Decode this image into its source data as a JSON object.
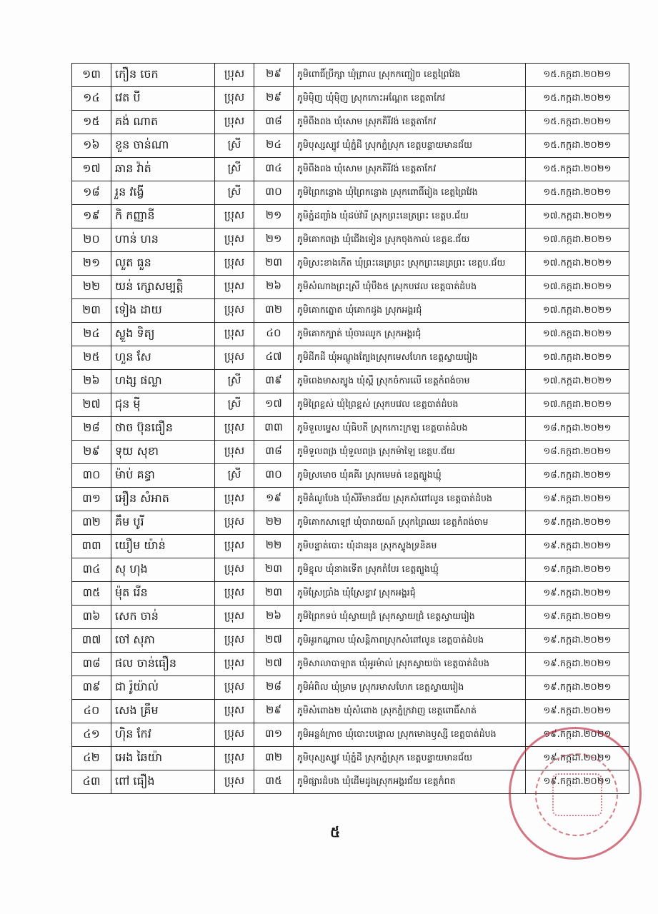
{
  "table": {
    "rows": [
      {
        "no": "១៣",
        "name": "កឿន ចេក",
        "sex": "ប្រុស",
        "age": "២៩",
        "address": "ភូមិពោធិ៍ប្រីក្សា ឃុំព្រាល ស្រុកកញ្ជៀច ខេត្តព្រៃវែង",
        "date": "១៥.កក្កដា.២០២១"
      },
      {
        "no": "១៤",
        "name": "វេត បី",
        "sex": "ប្រុស",
        "age": "២៩",
        "address": "ភូមិម៉ិញ ឃុំម៉ិញ ស្រុកកោះអណ្ដែត ខេត្តតាកែវ",
        "date": "១៥.កក្កដា.២០២១"
      },
      {
        "no": "១៥",
        "name": "គង់ ណាត",
        "sex": "ប្រុស",
        "age": "៣៨",
        "address": "ភូមិពីងពង ឃុំសោម ស្រុកគិរីវង់ ខេត្តតាកែវ",
        "date": "១៥.កក្កដា.២០២១"
      },
      {
        "no": "១៦",
        "name": "ខួន ចាន់ណា",
        "sex": "ស្រី",
        "age": "២៤",
        "address": "ភូមិបុស្សស្បូវ ឃុំភ្នំដី ស្រុកភ្នំស្រុក ខេត្តបន្ទាយមានជ័យ",
        "date": "១៥.កក្កដា.២០២១"
      },
      {
        "no": "១៧",
        "name": "ឆាន វ៉ាត់",
        "sex": "ស្រី",
        "age": "៣៤",
        "address": "ភូមិពីងពង ឃុំសោម ស្រុកគិរីវង់ ខេត្តតាកែវ",
        "date": "១៥.កក្កដា.២០២១"
      },
      {
        "no": "១៨",
        "name": "រួន វង្វើ",
        "sex": "ស្រី",
        "age": "៣០",
        "address": "ភូមិព្រៃកន្លោង ឃុំព្រៃកន្លោង ស្រុកពោធិ៍រៀង ខេត្តព្រៃវែង",
        "date": "១៥.កក្កដា.២០២១"
      },
      {
        "no": "១៩",
        "name": "កិ កញ្ញានី",
        "sex": "ប្រុស",
        "age": "២១",
        "address": "ភូមិភ្នំដញ្ចាំង ឃុំដប់វ៉ារី ស្រុកព្រះនេត្រព្រះ ខេត្តប.ជ័យ",
        "date": "១៧.កក្កដា.២០២១"
      },
      {
        "no": "២០",
        "name": "ហាន់ ហន",
        "sex": "ប្រុស",
        "age": "២១",
        "address": "ភូមិគោកពង្រ ឃុំជើងទៀន ស្រុកចុងកាល់ ខេត្តឧ.ជ័យ",
        "date": "១៧.កក្កដា.២០២១"
      },
      {
        "no": "២១",
        "name": "លួត ធួន",
        "sex": "ប្រុស",
        "age": "២៣",
        "address": "ភូមិស្រះខាងកើត ឃុំព្រះនេត្រព្រះ ស្រុកព្រះនេត្រព្រះ ខេត្តប.ជ័យ",
        "date": "១៧.កក្កដា.២០២១"
      },
      {
        "no": "២២",
        "name": "យន់ ក្សោសម្បត្តិ",
        "sex": "ប្រុស",
        "age": "២៦",
        "address": "ភូមិសំណាងព្រះស្រី ឃុំបឹង៥ ស្រុកបវេល ខេត្តបាត់ដំបង",
        "date": "១៧.កក្កដា.២០២១"
      },
      {
        "no": "២៣",
        "name": "ទៀង ដាយ",
        "sex": "ប្រុស",
        "age": "៣២",
        "address": "ភូមិគោកត្នោត ឃុំគោកដូង ស្រុកអង្គរជុំ",
        "date": "១៧.កក្កដា.២០២១"
      },
      {
        "no": "២៤",
        "name": "ស្លួង ទិត្យ",
        "sex": "ប្រុស",
        "age": "៤០",
        "address": "ភូមិគោកក្បាត់ ឃុំចារឈូក ស្រុកអង្គរជុំ",
        "date": "១៧.កក្កដា.២០២១"
      },
      {
        "no": "២៥",
        "name": "ហួន សែ",
        "sex": "ប្រុស",
        "age": "៤៧",
        "address": "ភូមិដីកដី ឃុំអណ្ដូងត្បែងស្រុកមេសហែក ខេត្តស្វាយរៀង",
        "date": "១៧.កក្កដា.២០២១"
      },
      {
        "no": "២៦",
        "name": "ហង្ស ផល្លា",
        "sex": "ស្រី",
        "age": "៣៩",
        "address": "ភូមិពេងមាសត្បូង ឃុំស្ពឺ ស្រុកចំការលើ ខេត្តកំពង់ចាម",
        "date": "១៧.កក្កដា.២០២១"
      },
      {
        "no": "២៧",
        "name": "ជុន មុី",
        "sex": "ស្រី",
        "age": "១៧",
        "address": "ភូមិព្រៃខ្ពស់ ឃុំព្រៃខ្ពស់ ស្រុកបវេល ខេត្តបាត់ដំបង",
        "date": "១៧.កក្កដា.២០២១"
      },
      {
        "no": "២៨",
        "name": "ថាច ប៊ុនធឿន",
        "sex": "ប្រុស",
        "age": "៣៣",
        "address": "ភូមិទួលម្ទេស ឃុំធិបតី ស្រុកកោះក្រឡ ខេត្តបាត់ដំបង",
        "date": "១៨.កក្កដា.២០២១"
      },
      {
        "no": "២៩",
        "name": "ទុយ សុខា",
        "sex": "ប្រុស",
        "age": "៣៨",
        "address": "ភូមិទួលពង្រ ឃុំទួលពង្រ ស្រុកម៉ាឡៃ ខេត្តប.ជ័យ",
        "date": "១៨.កក្កដា.២០២១"
      },
      {
        "no": "៣០",
        "name": "ម៉ាប់ គន្ធា",
        "sex": "ស្រី",
        "age": "៣០",
        "address": "ភូមិស្រមោច ឃុំគគីរ ស្រុកមេមត់ ខេត្តត្បូងឃ្មុំ",
        "date": "១៨.កក្កដា.២០២១"
      },
      {
        "no": "៣១",
        "name": "អឿន សំអាត",
        "sex": "ប្រុស",
        "age": "១៩",
        "address": "ភូមិគំណូបែង ឃុំសិរីមានជ័យ ស្រុកសំពៅលូន ខេត្តបាត់ដំបង",
        "date": "១៩.កក្កដា.២០២១"
      },
      {
        "no": "៣២",
        "name": "គឹម បូរី",
        "sex": "ប្រុស",
        "age": "២២",
        "address": "ភូមិគោកសាឡៅ ឃុំបារាយណ៍ ស្រុកព្រៃឈរ ខេត្តកំពង់ចាម",
        "date": "១៩.កក្កដា.២០២១"
      },
      {
        "no": "៣៣",
        "name": "យឿម យ៉ាន់",
        "sex": "ប្រុស",
        "age": "២២",
        "address": "ភូមិបន្ទាត់បោះ ឃុំដានរុន ស្រុកស្ទូងទ្រនិគម",
        "date": "១៩.កក្កដា.២០២១"
      },
      {
        "no": "៣៤",
        "name": "សុ ហុង",
        "sex": "ប្រុស",
        "age": "២៣",
        "address": "ភូមិខ្នុល ឃុំនាងទើត ស្រុកតំបែរ ខេត្តត្បូងឃ្មុំ",
        "date": "១៩.កក្កដា.២០២១"
      },
      {
        "no": "៣៥",
        "name": "ម៉ុត រើន",
        "sex": "ប្រុស",
        "age": "២៣",
        "address": "ភូមិស្រែប្រាំង ឃុំស្រែខ្វាវ ស្រុកអង្គរជុំ",
        "date": "១៩.កក្កដា.២០២១"
      },
      {
        "no": "៣៦",
        "name": "សេក ចាន់",
        "sex": "ប្រុស",
        "age": "២៦",
        "address": "ភូមិព្រៃកទប់ ឃុំស្វាយជ្រំ ស្រុកស្វាយជ្រំ ខេត្តស្វាយរៀង",
        "date": "១៩.កក្កដា.២០២១"
      },
      {
        "no": "៣៧",
        "name": "ចៅ សុភា",
        "sex": "ប្រុស",
        "age": "២៧",
        "address": "ភូមិអូរកណ្ដាល ឃុំសន្តិភាពស្រុកសំពៅលូន ខេត្តបាត់ដំបង",
        "date": "១៩.កក្កដា.២០២១"
      },
      {
        "no": "៣៨",
        "name": "ផល ចាន់ធឿន",
        "sex": "ប្រុស",
        "age": "២៧",
        "address": "ភូមិសាលាបាឡាត ឃុំអូរម៉ាល់ ស្រុកស្វាយប៉ា ខេត្តបាត់ដំបង",
        "date": "១៩.កក្កដា.២០២១"
      },
      {
        "no": "៣៩",
        "name": "ជា រ៉ូយ៉ាល់",
        "sex": "ប្រុស",
        "age": "២៨",
        "address": "ភូមិអំពិល ឃុំម្រាម ស្រុករមាសហែក ខេត្តស្វាយរៀង",
        "date": "១៩.កក្កដា.២០២១"
      },
      {
        "no": "៤០",
        "name": "សេង គ្រឹម",
        "sex": "ប្រុស",
        "age": "២៩",
        "address": "ភូមិសំពោង២ ឃុំសំពោង ស្រុកភ្នំក្រវាញ ខេត្តពោធិ៍សាត់",
        "date": "១៩.កក្កដា.២០២១"
      },
      {
        "no": "៤១",
        "name": "ហ៊ិន កែវ",
        "sex": "ប្រុស",
        "age": "៣១",
        "address": "ភូមិអន្លង់ក្រាច ឃុំបោះបង្គោល ស្រុកមោងឫស្សី ខេត្តបាត់ដំបង",
        "date": "១៩.កក្កដា.២០២១"
      },
      {
        "no": "៤២",
        "name": "អេង ឆៃយ៉ា",
        "sex": "ប្រុស",
        "age": "៣២",
        "address": "ភូមិបុស្សស្បូវ ឃុំភ្នំដី ស្រុកភ្នំស្រុក ខេត្តបន្ទាយមានជ័យ",
        "date": "១៩.កក្កដា.២០២១"
      },
      {
        "no": "៤៣",
        "name": "ពៅ ធឿង",
        "sex": "ប្រុស",
        "age": "៣៥",
        "address": "ភូមិផ្សារដំបង ឃុំដើមដូងស្រុកអង្គរជ័យ ខេត្តកំពត",
        "date": "១៩.កក្កដា.២០២១"
      }
    ]
  },
  "footer": {
    "page_number": "៥"
  },
  "colors": {
    "stamp": "#b9283c",
    "border": "#222222"
  }
}
